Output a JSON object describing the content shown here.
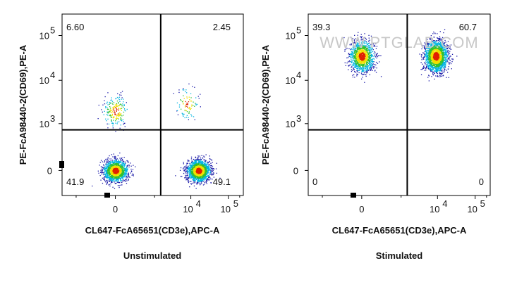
{
  "chart_data": [
    {
      "type": "scatter",
      "title": "Unstimulated",
      "xlabel": "CL647-FcA65651(CD3e),APC-A",
      "ylabel": "PE-FcA98440-2(CD69),PE-A",
      "x_scale": "biexponential",
      "y_scale": "biexponential",
      "x_ticks": [
        {
          "value": 0,
          "label": "0"
        },
        {
          "value": 10000,
          "label": "10",
          "exp": "4"
        },
        {
          "value": 100000,
          "label": "10",
          "exp": "5"
        }
      ],
      "y_ticks": [
        {
          "value": 0,
          "label": "0"
        },
        {
          "value": 1000,
          "label": "10",
          "exp": "3"
        },
        {
          "value": 10000,
          "label": "10",
          "exp": "4"
        },
        {
          "value": 100000,
          "label": "10",
          "exp": "5"
        }
      ],
      "gates": {
        "x_threshold": 1500,
        "y_threshold": 700
      },
      "quadrants": {
        "upper_left": "6.60",
        "upper_right": "2.45",
        "lower_left": "41.9",
        "lower_right": "49.1"
      },
      "populations": [
        {
          "x_center": 0,
          "y_center": 0,
          "n": 1500
        },
        {
          "x_center": 16000,
          "y_center": 0,
          "n": 1750
        },
        {
          "x_center": 0,
          "y_center": 2000,
          "n": 220
        },
        {
          "x_center": 8000,
          "y_center": 3000,
          "n": 90
        }
      ]
    },
    {
      "type": "scatter",
      "title": "Stimulated",
      "xlabel": "CL647-FcA65651(CD3e),APC-A",
      "ylabel": "PE-FcA98440-2(CD69),PE-A",
      "x_scale": "biexponential",
      "y_scale": "biexponential",
      "x_ticks": [
        {
          "value": 0,
          "label": "0"
        },
        {
          "value": 10000,
          "label": "10",
          "exp": "4"
        },
        {
          "value": 100000,
          "label": "10",
          "exp": "5"
        }
      ],
      "y_ticks": [
        {
          "value": 0,
          "label": "0"
        },
        {
          "value": 1000,
          "label": "10",
          "exp": "3"
        },
        {
          "value": 10000,
          "label": "10",
          "exp": "4"
        },
        {
          "value": 100000,
          "label": "10",
          "exp": "5"
        }
      ],
      "gates": {
        "x_threshold": 1500,
        "y_threshold": 700
      },
      "quadrants": {
        "upper_left": "39.3",
        "upper_right": "60.7",
        "lower_left": "0",
        "lower_right": "0"
      },
      "populations": [
        {
          "x_center": 0,
          "y_center": 35000,
          "n": 1300
        },
        {
          "x_center": 9000,
          "y_center": 35000,
          "n": 2000
        }
      ]
    }
  ],
  "watermark": "WWW.PTGLAB.COM",
  "colors": {
    "low": "#1a1aa8",
    "mid_low": "#00b4e0",
    "mid": "#30c030",
    "mid_high": "#f0e000",
    "high": "#e02000",
    "gate": "#000000"
  }
}
